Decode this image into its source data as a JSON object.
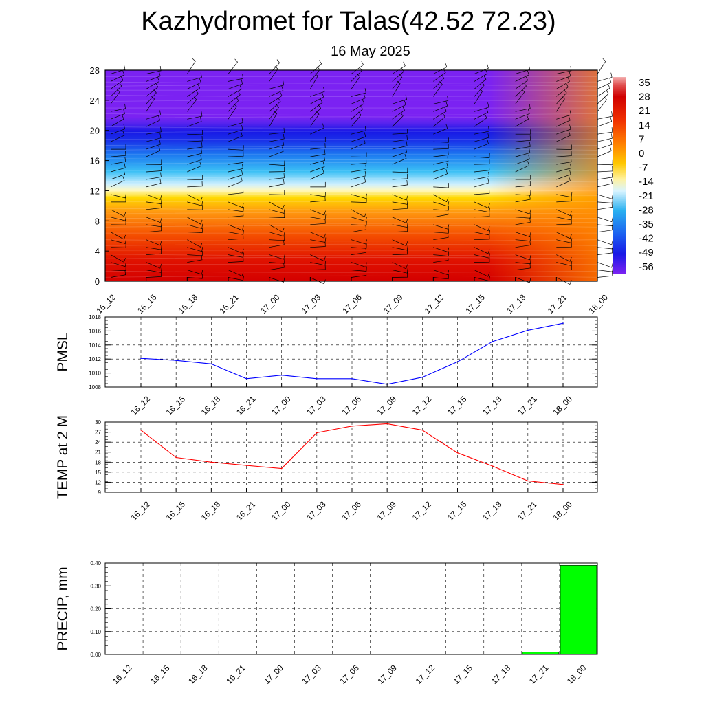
{
  "title": "Kazhydromet for Talas(42.52 72.23)",
  "subtitle": "16 May 2025",
  "chart_data": [
    {
      "type": "heatmap",
      "name": "upper-air-cross-section",
      "x_ticks": [
        "16_12",
        "16_15",
        "16_18",
        "16_21",
        "17_00",
        "17_03",
        "17_06",
        "17_09",
        "17_12",
        "17_15",
        "17_18",
        "17_21",
        "18_00"
      ],
      "y_ticks": [
        "0",
        "4",
        "8",
        "12",
        "16",
        "20",
        "24",
        "28"
      ],
      "ylim": [
        0,
        28
      ],
      "colorbar_labels": [
        "35",
        "28",
        "21",
        "14",
        "7",
        "0",
        "-7",
        "-14",
        "-21",
        "-28",
        "-35",
        "-42",
        "-49",
        "-56"
      ],
      "colors": {
        "hot": "#d90000",
        "warm": "#ff7a00",
        "yellow": "#ffe200",
        "pale": "#d9f4ff",
        "cyan": "#29b0f0",
        "blue": "#1530ee",
        "violet": "#7b22f2"
      },
      "wind_barbs": true
    },
    {
      "type": "line",
      "name": "pmsl",
      "ylabel": "PMSL",
      "x": [
        "16_12",
        "16_15",
        "16_18",
        "16_21",
        "17_00",
        "17_03",
        "17_06",
        "17_09",
        "17_12",
        "17_15",
        "17_18",
        "17_21",
        "18_00"
      ],
      "values": [
        1012.1,
        1011.8,
        1011.3,
        1009.2,
        1009.7,
        1009.2,
        1009.2,
        1008.4,
        1009.4,
        1011.6,
        1014.5,
        1016.1,
        1017.1
      ],
      "y_ticks": [
        "1008",
        "1010",
        "1012",
        "1014",
        "1016",
        "1018"
      ],
      "ylim": [
        1008,
        1018
      ],
      "color": "#0000ff",
      "grid": true
    },
    {
      "type": "line",
      "name": "temp",
      "ylabel": "TEMP at 2 M",
      "x": [
        "16_12",
        "16_15",
        "16_18",
        "16_21",
        "17_00",
        "17_03",
        "17_06",
        "17_09",
        "17_12",
        "17_15",
        "17_18",
        "17_21",
        "18_00"
      ],
      "values": [
        27.6,
        19.4,
        18.0,
        17.0,
        16.1,
        26.8,
        28.8,
        29.5,
        27.6,
        20.8,
        16.8,
        12.4,
        11.3
      ],
      "y_ticks": [
        "9",
        "12",
        "15",
        "18",
        "21",
        "24",
        "27",
        "30"
      ],
      "ylim": [
        9,
        30
      ],
      "color": "#ff0000",
      "grid": true
    },
    {
      "type": "bar",
      "name": "precip",
      "ylabel": "PRECIP, mm",
      "categories": [
        "16_12",
        "16_15",
        "16_18",
        "16_21",
        "17_00",
        "17_03",
        "17_06",
        "17_09",
        "17_12",
        "17_15",
        "17_18",
        "17_21",
        "18_00"
      ],
      "values": [
        0,
        0,
        0,
        0,
        0,
        0,
        0,
        0,
        0,
        0,
        0,
        0.01,
        0.39
      ],
      "y_ticks": [
        "0.00",
        "0.10",
        "0.20",
        "0.30",
        "0.40"
      ],
      "ylim": [
        0,
        0.4
      ],
      "color": "#00ff00",
      "grid": true
    }
  ]
}
